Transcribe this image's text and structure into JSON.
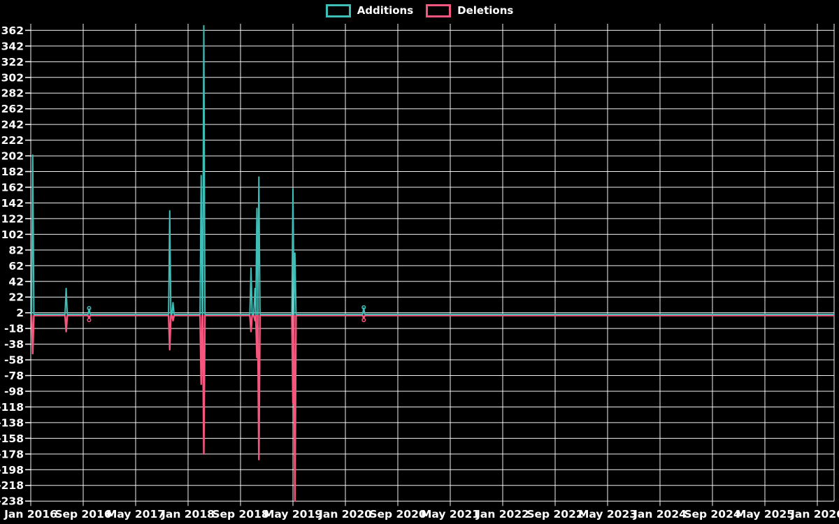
{
  "legend": {
    "items": [
      {
        "label": "Additions",
        "color": "#3fbdb7"
      },
      {
        "label": "Deletions",
        "color": "#f4567e"
      }
    ]
  },
  "chart_data": {
    "type": "line",
    "title": "",
    "xlabel": "",
    "ylabel": "",
    "background_color": "#000000",
    "gridline_color": "#ffffff",
    "text_color": "#ffffff",
    "grid": true,
    "legend_position": "top-center",
    "baseline_value": 0,
    "y_axis": {
      "min": -238,
      "max": 362,
      "step": 20,
      "ticks": [
        362,
        342,
        322,
        302,
        282,
        262,
        242,
        222,
        202,
        182,
        162,
        142,
        122,
        102,
        82,
        62,
        42,
        22,
        2,
        -18,
        -38,
        -58,
        -78,
        -98,
        -118,
        -138,
        -158,
        -178,
        -198,
        -218,
        -238
      ]
    },
    "x_axis": {
      "ticks": [
        "Jan 2016",
        "Sep 2016",
        "May 2017",
        "Jan 2018",
        "Sep 2018",
        "May 2019",
        "Jan 2020",
        "Sep 2020",
        "May 2021",
        "Jan 2022",
        "Sep 2022",
        "May 2023",
        "Jan 2024",
        "Sep 2024",
        "May 2025",
        "Jan 2026"
      ],
      "months_per_tick": 8,
      "range": [
        "Jan 2016",
        "Jan 2026"
      ]
    },
    "series": [
      {
        "name": "Additions",
        "color": "#3fbdb7"
      },
      {
        "name": "Deletions",
        "color": "#f4567e"
      }
    ],
    "events": [
      {
        "date": "2016-01",
        "month_index": 0.3,
        "additions": 203,
        "deletions": -50
      },
      {
        "date": "2016-06",
        "month_index": 5.4,
        "additions": 33,
        "deletions": -22
      },
      {
        "date": "2016-10",
        "month_index": 8.9,
        "additions": 7,
        "deletions": -5
      },
      {
        "date": "2017-10",
        "month_index": 21.2,
        "additions": 132,
        "deletions": -45
      },
      {
        "date": "2017-10",
        "month_index": 21.7,
        "additions": 15,
        "deletions": -8
      },
      {
        "date": "2018-03",
        "month_index": 26.0,
        "additions": 177,
        "deletions": -89
      },
      {
        "date": "2018-03",
        "month_index": 26.4,
        "additions": 368,
        "deletions": -178
      },
      {
        "date": "2018-10",
        "month_index": 33.6,
        "additions": 59,
        "deletions": -22
      },
      {
        "date": "2018-10",
        "month_index": 34.2,
        "additions": 33,
        "deletions": -8
      },
      {
        "date": "2018-11",
        "month_index": 34.5,
        "additions": 135,
        "deletions": -55
      },
      {
        "date": "2018-11",
        "month_index": 34.8,
        "additions": 175,
        "deletions": -185
      },
      {
        "date": "2019-05",
        "month_index": 40.0,
        "additions": 160,
        "deletions": -113
      },
      {
        "date": "2019-05",
        "month_index": 40.3,
        "additions": 78,
        "deletions": -238
      },
      {
        "date": "2020-03",
        "month_index": 50.8,
        "additions": 8,
        "deletions": -5
      }
    ]
  }
}
